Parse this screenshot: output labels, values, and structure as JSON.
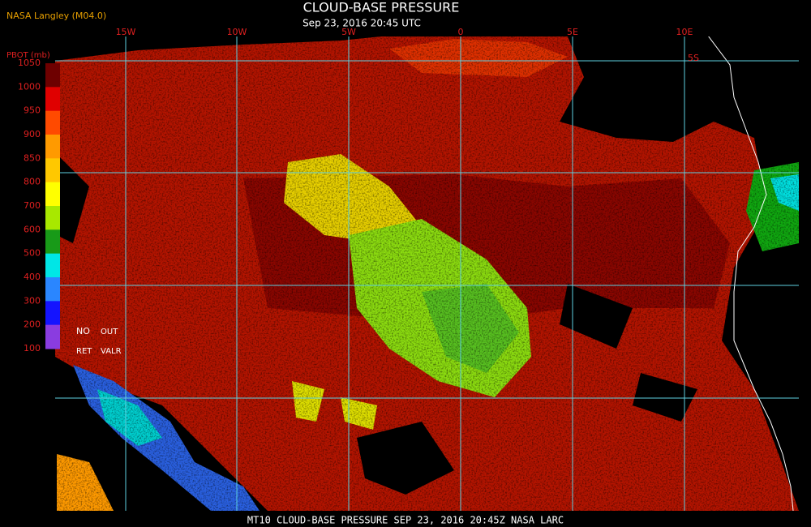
{
  "header": {
    "source": "NASA Langley (M04.0)",
    "title": "CLOUD-BASE PRESSURE",
    "subtitle": "Sep 23, 2016 20:45 UTC"
  },
  "map": {
    "lon_labels": [
      "15W",
      "10W",
      "5W",
      "0",
      "5E",
      "10E"
    ],
    "lat_labels": [
      "5S"
    ]
  },
  "legend": {
    "title": "PBOT (mb)",
    "ticks": [
      1050,
      1000,
      950,
      900,
      850,
      800,
      700,
      600,
      500,
      400,
      300,
      200,
      100
    ],
    "colors": [
      "#6e0000",
      "#e00000",
      "#ff4a00",
      "#ff9a00",
      "#ffc800",
      "#ffff00",
      "#a8e800",
      "#189a18",
      "#00e6e6",
      "#2a86ff",
      "#1414ff",
      "#8a3ce0"
    ],
    "notes": [
      "NO",
      "OUT",
      "RET",
      "VALR"
    ]
  },
  "footer": {
    "caption": "MT10   CLOUD-BASE PRESSURE   SEP 23, 2016 20:45Z   NASA LARC"
  }
}
